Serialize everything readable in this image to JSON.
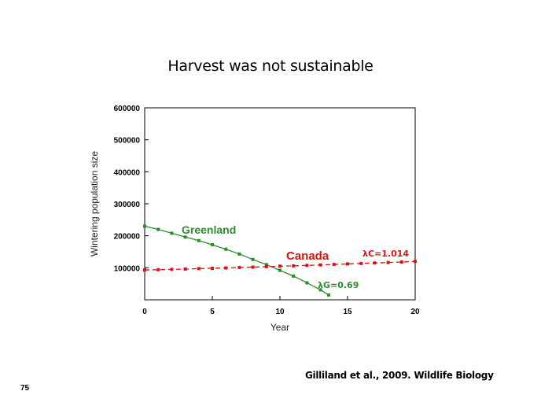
{
  "slide": {
    "title": "Harvest was not sustainable",
    "citation": "Gilliland et al., 2009.  Wildlife Biology",
    "number": "75"
  },
  "chart_data": {
    "type": "line",
    "title": "",
    "xlabel": "Year",
    "ylabel": "Wintering population size",
    "xlim": [
      0,
      20
    ],
    "ylim": [
      0,
      600000
    ],
    "x_ticks": [
      0,
      5,
      10,
      15,
      20
    ],
    "y_ticks": [
      100000,
      200000,
      300000,
      400000,
      500000,
      600000
    ],
    "grid": false,
    "series": [
      {
        "name": "Greenland",
        "color": "#2e8b2e",
        "line_style": "solid",
        "rate_label": "λG=0.69",
        "x": [
          0,
          1,
          2,
          3,
          4,
          5,
          6,
          7,
          8,
          9,
          10,
          11,
          12,
          13,
          13.6
        ],
        "y": [
          230000,
          220000,
          208000,
          196000,
          185000,
          172000,
          158000,
          143000,
          126000,
          110000,
          92000,
          74000,
          53000,
          31000,
          15000
        ]
      },
      {
        "name": "Canada",
        "color": "#dd1111",
        "line_style": "dashed",
        "rate_label": "λC=1.014",
        "x": [
          0,
          1,
          2,
          3,
          4,
          5,
          6,
          7,
          8,
          9,
          10,
          11,
          12,
          13,
          14,
          15,
          16,
          17,
          18,
          19,
          20
        ],
        "y": [
          93000,
          94000,
          95000,
          96000,
          97500,
          98500,
          99500,
          101000,
          102000,
          103500,
          105000,
          106000,
          107500,
          109000,
          110500,
          112000,
          113500,
          115000,
          116500,
          118000,
          120000
        ]
      }
    ]
  }
}
